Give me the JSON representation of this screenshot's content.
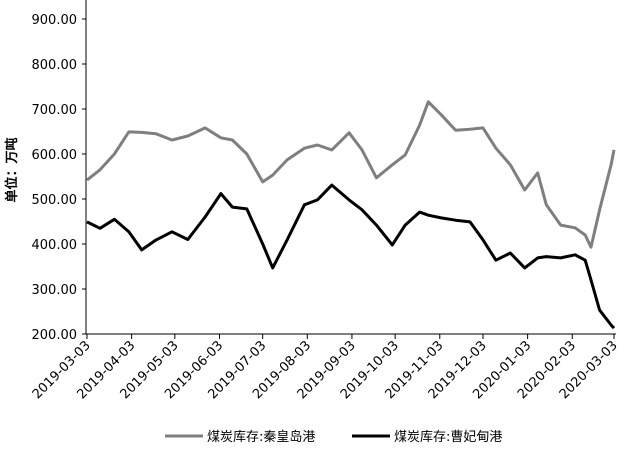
{
  "chart_data": {
    "type": "line",
    "y_label": "单位：万吨",
    "x": [
      "2019-03-03",
      "2019-03-12",
      "2019-03-22",
      "2019-04-01",
      "2019-04-10",
      "2019-04-20",
      "2019-05-01",
      "2019-05-12",
      "2019-05-24",
      "2019-06-04",
      "2019-06-12",
      "2019-06-22",
      "2019-07-03",
      "2019-07-10",
      "2019-07-20",
      "2019-08-01",
      "2019-08-10",
      "2019-08-20",
      "2019-09-01",
      "2019-09-10",
      "2019-09-20",
      "2019-10-01",
      "2019-10-10",
      "2019-10-20",
      "2019-10-26",
      "2019-11-04",
      "2019-11-14",
      "2019-11-24",
      "2019-12-03",
      "2019-12-12",
      "2019-12-22",
      "2020-01-01",
      "2020-01-10",
      "2020-01-16",
      "2020-01-26",
      "2020-02-05",
      "2020-02-12",
      "2020-02-16",
      "2020-02-22",
      "2020-03-01",
      "2020-03-03"
    ],
    "series": [
      {
        "name": "煤炭库存:秦皇岛港",
        "color": "#7f7f7f",
        "values": [
          542,
          565,
          600,
          649,
          648,
          645,
          631,
          640,
          658,
          636,
          631,
          600,
          538,
          553,
          587,
          613,
          620,
          609,
          647,
          609,
          547,
          576,
          598,
          664,
          716,
          687,
          653,
          655,
          658,
          613,
          576,
          520,
          558,
          487,
          442,
          436,
          420,
          393,
          476,
          576,
          609
        ]
      },
      {
        "name": "煤炭库存:曹妃甸港",
        "color": "#000000",
        "values": [
          449,
          435,
          455,
          427,
          387,
          409,
          427,
          410,
          460,
          512,
          482,
          478,
          400,
          347,
          409,
          487,
          498,
          531,
          498,
          476,
          442,
          398,
          442,
          471,
          464,
          458,
          453,
          449,
          409,
          364,
          380,
          347,
          369,
          372,
          369,
          376,
          364,
          320,
          253,
          220,
          213
        ]
      }
    ],
    "xlim": [
      "2019-03-03",
      "2020-03-03"
    ],
    "xticks": [
      "2019-03-03",
      "2019-04-03",
      "2019-05-03",
      "2019-06-03",
      "2019-07-03",
      "2019-08-03",
      "2019-09-03",
      "2019-10-03",
      "2019-11-03",
      "2019-12-03",
      "2020-01-03",
      "2020-02-03",
      "2020-03-03"
    ],
    "ylim": [
      200,
      900
    ],
    "yticks": [
      {
        "value": 200,
        "label": "200.00"
      },
      {
        "value": 300,
        "label": "300.00"
      },
      {
        "value": 400,
        "label": "400.00"
      },
      {
        "value": 500,
        "label": "500.00"
      },
      {
        "value": 600,
        "label": "600.00"
      },
      {
        "value": 700,
        "label": "700.00"
      },
      {
        "value": 800,
        "label": "800.00"
      },
      {
        "value": 900,
        "label": "900.00"
      }
    ],
    "grid": false,
    "legend": "bottom"
  }
}
